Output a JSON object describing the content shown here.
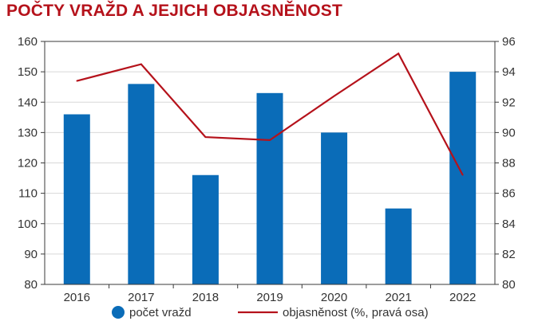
{
  "chart_data": {
    "type": "bar",
    "title": "POČTY VRAŽD A JEJICH OBJASNĚNOST",
    "categories": [
      "2016",
      "2017",
      "2018",
      "2019",
      "2020",
      "2021",
      "2022"
    ],
    "series": [
      {
        "name": "počet vražd",
        "type": "bar",
        "axis": "left",
        "color": "#0a6cb8",
        "values": [
          136,
          146,
          116,
          143,
          130,
          105,
          150
        ]
      },
      {
        "name": "objasněnost (%, pravá osa)",
        "type": "line",
        "axis": "right",
        "color": "#b5121b",
        "values": [
          93.4,
          94.5,
          89.7,
          89.5,
          92.4,
          95.2,
          87.2
        ]
      }
    ],
    "y_left": {
      "min": 80,
      "max": 160,
      "step": 10,
      "ticks": [
        "80",
        "90",
        "100",
        "110",
        "120",
        "130",
        "140",
        "150",
        "160"
      ]
    },
    "y_right": {
      "min": 80,
      "max": 96,
      "step": 2,
      "ticks": [
        "80",
        "82",
        "84",
        "86",
        "88",
        "90",
        "92",
        "94",
        "96"
      ]
    },
    "grid": "horizontal",
    "legend_position": "bottom"
  }
}
